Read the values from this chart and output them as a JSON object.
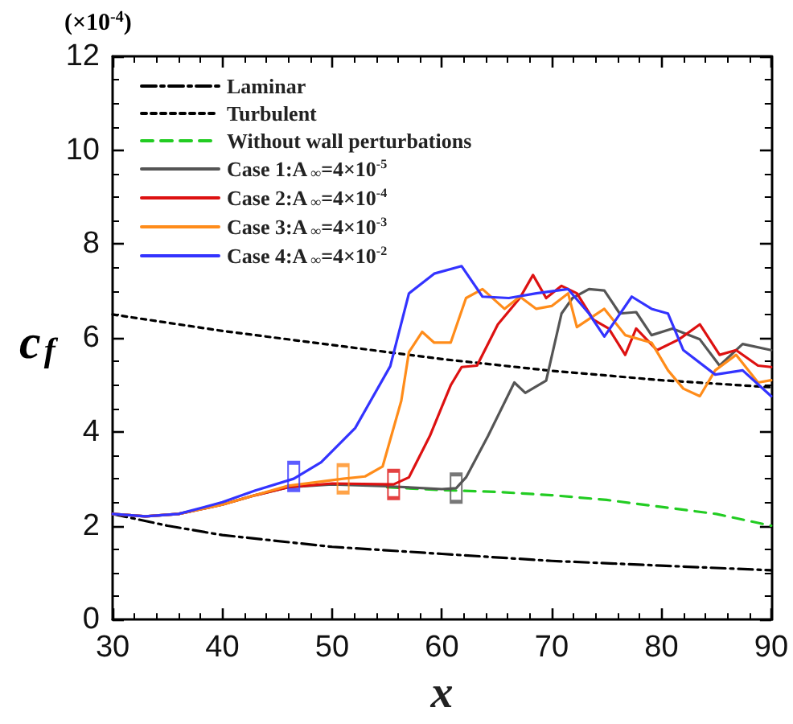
{
  "chart_data": {
    "type": "line",
    "xlabel": "x",
    "ylabel": "c$_{f}$",
    "annotations": [
      "(×10$^{-4}$)"
    ],
    "xlim": [
      30,
      90
    ],
    "ylim": [
      0,
      12
    ],
    "xticks": [
      30,
      40,
      50,
      60,
      70,
      80,
      90
    ],
    "yticks": [
      0,
      2,
      4,
      6,
      8,
      10,
      12
    ],
    "legend": "top left",
    "marker": "none",
    "series": [
      {
        "name": "Laminar",
        "color": "#000000",
        "line_style": "dashdot",
        "x": [
          30,
          35,
          40,
          50,
          60,
          70,
          80,
          90
        ],
        "values": [
          2.25,
          2.0,
          1.8,
          1.55,
          1.4,
          1.25,
          1.15,
          1.05
        ]
      },
      {
        "name": "Turbulent",
        "color": "#000000",
        "line_style": "dotted",
        "x": [
          30,
          40,
          50,
          60,
          70,
          80,
          90
        ],
        "values": [
          6.5,
          6.15,
          5.85,
          5.55,
          5.3,
          5.1,
          4.95
        ]
      },
      {
        "name": "Without wall perturbations",
        "color": "#22cc22",
        "line_style": "dashed",
        "x": [
          55,
          60,
          65,
          70,
          75,
          80,
          85,
          90
        ],
        "values": [
          2.82,
          2.76,
          2.72,
          2.65,
          2.55,
          2.4,
          2.25,
          2.0
        ]
      },
      {
        "name": "Case 1:A$_{∞}$=4×10$^{-5}$",
        "color": "#555555",
        "line_style": "solid",
        "x": [
          30,
          33,
          36,
          40,
          43,
          46,
          50,
          55,
          60,
          61.3,
          62.2,
          64.2,
          66.6,
          67.6,
          69.5,
          70.9,
          71.9,
          73.4,
          74.8,
          76.2,
          77.7,
          79.1,
          81.0,
          83.5,
          85.3,
          87.4,
          90
        ],
        "values": [
          2.25,
          2.2,
          2.25,
          2.45,
          2.65,
          2.82,
          2.88,
          2.84,
          2.78,
          2.8,
          3.03,
          3.91,
          5.05,
          4.83,
          5.09,
          6.52,
          6.85,
          7.04,
          7.01,
          6.52,
          6.55,
          6.06,
          6.2,
          5.97,
          5.41,
          5.87,
          5.74
        ]
      },
      {
        "name": "Case 2:A$_{∞}$=4×10$^{-4}$",
        "color": "#dd1111",
        "line_style": "solid",
        "x": [
          30,
          33,
          36,
          40,
          43,
          46,
          50,
          55.6,
          57,
          58.9,
          60.8,
          61.8,
          63.2,
          65.1,
          67.1,
          68.3,
          69.5,
          70.9,
          72.3,
          73.8,
          75.2,
          76.7,
          77.7,
          79.6,
          81.6,
          83.5,
          85.3,
          86.8,
          88.8,
          90
        ],
        "values": [
          2.25,
          2.2,
          2.25,
          2.45,
          2.65,
          2.82,
          2.9,
          2.88,
          3.03,
          3.91,
          4.99,
          5.38,
          5.41,
          6.29,
          6.85,
          7.34,
          6.85,
          7.11,
          6.95,
          6.39,
          6.2,
          5.64,
          6.2,
          5.74,
          5.97,
          6.29,
          5.64,
          5.74,
          5.41,
          5.38
        ]
      },
      {
        "name": "Case 3:A$_{∞}$=4×10$^{-3}$",
        "color": "#ff8c1a",
        "line_style": "solid",
        "x": [
          30,
          33,
          36,
          40,
          43,
          46,
          51,
          53,
          54.6,
          56.3,
          57,
          58.2,
          59.3,
          60.8,
          62.2,
          63.7,
          65.7,
          67.1,
          68.6,
          70,
          71.5,
          72.3,
          74.8,
          76.7,
          79.1,
          80.6,
          82,
          83.5,
          84.9,
          86.8,
          88.8,
          90
        ],
        "values": [
          2.25,
          2.2,
          2.25,
          2.45,
          2.65,
          2.85,
          3.0,
          3.05,
          3.26,
          4.66,
          5.7,
          6.13,
          5.9,
          5.9,
          6.85,
          7.04,
          6.62,
          6.88,
          6.62,
          6.68,
          6.95,
          6.23,
          6.62,
          6.06,
          5.9,
          5.31,
          4.92,
          4.76,
          5.31,
          5.64,
          5.05,
          5.1
        ]
      },
      {
        "name": "Case 4:A$_{∞}$=4×10$^{-2}$",
        "color": "#3333ff",
        "line_style": "solid",
        "x": [
          30,
          33,
          36,
          40,
          43,
          46.5,
          49,
          52.1,
          55.3,
          57,
          59.3,
          61.8,
          63.7,
          66.1,
          68.6,
          71.5,
          73.4,
          74.8,
          77.3,
          79.1,
          80.6,
          82,
          84.9,
          87.4,
          90
        ],
        "values": [
          2.25,
          2.2,
          2.25,
          2.5,
          2.75,
          3.0,
          3.35,
          4.08,
          5.4,
          6.95,
          7.37,
          7.53,
          6.88,
          6.85,
          6.95,
          7.04,
          6.52,
          6.03,
          6.88,
          6.62,
          6.52,
          5.74,
          5.22,
          5.31,
          4.76
        ]
      },
      {
        "type": "scatter",
        "marker": "square",
        "color": "#555555",
        "x": [
          61.3
        ],
        "values": [
          2.8
        ]
      },
      {
        "type": "scatter",
        "marker": "square",
        "color": "#dd1111",
        "x": [
          55.6
        ],
        "values": [
          2.88
        ]
      },
      {
        "type": "scatter",
        "marker": "square",
        "color": "#ff8c1a",
        "x": [
          51
        ],
        "values": [
          3.0
        ]
      },
      {
        "type": "scatter",
        "marker": "square",
        "color": "#3333ff",
        "x": [
          46.5
        ],
        "values": [
          3.05
        ]
      }
    ]
  }
}
